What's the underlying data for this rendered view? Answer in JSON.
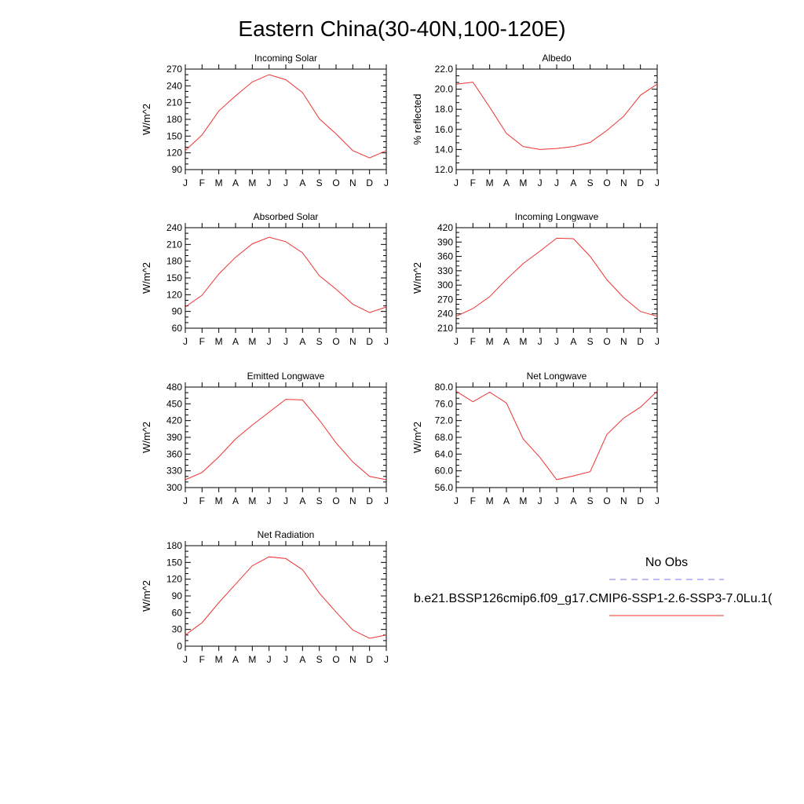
{
  "title": "Eastern China(30-40N,100-120E)",
  "months": [
    "J",
    "F",
    "M",
    "A",
    "M",
    "J",
    "J",
    "A",
    "S",
    "O",
    "N",
    "D",
    "J"
  ],
  "legend": {
    "obs_label": "No Obs",
    "model_label": "b.e21.BSSP126cmip6.f09_g17.CMIP6-SSP1-2.6-SSP3-7.0Lu.1(",
    "obs_color": "#7777ee",
    "model_color": "#ee3333"
  },
  "chart_data": [
    {
      "type": "line",
      "title": "Incoming Solar",
      "ylabel": "W/m^2",
      "ylim": [
        90,
        270
      ],
      "yticks": [
        "90",
        "120",
        "150",
        "180",
        "210",
        "240",
        "270"
      ],
      "series": [
        {
          "values": [
            124,
            152,
            195,
            222,
            247,
            260,
            251,
            228,
            181,
            154,
            124,
            111,
            124
          ]
        }
      ]
    },
    {
      "type": "line",
      "title": "Albedo",
      "ylabel": "% reflected",
      "ylim": [
        12,
        22
      ],
      "yticks": [
        "12.0",
        "14.0",
        "16.0",
        "18.0",
        "20.0",
        "22.0"
      ],
      "series": [
        {
          "values": [
            20.5,
            20.7,
            18.2,
            15.6,
            14.3,
            14.0,
            14.1,
            14.3,
            14.7,
            15.9,
            17.3,
            19.4,
            20.5
          ]
        }
      ]
    },
    {
      "type": "line",
      "title": "Absorbed Solar",
      "ylabel": "W/m^2",
      "ylim": [
        60,
        240
      ],
      "yticks": [
        "60",
        "90",
        "120",
        "150",
        "180",
        "210",
        "240"
      ],
      "series": [
        {
          "values": [
            98,
            119,
            157,
            187,
            211,
            223,
            215,
            195,
            154,
            130,
            103,
            88,
            98
          ]
        }
      ]
    },
    {
      "type": "line",
      "title": "Incoming Longwave",
      "ylabel": "W/m^2",
      "ylim": [
        210,
        420
      ],
      "yticks": [
        "210",
        "240",
        "270",
        "300",
        "330",
        "360",
        "390",
        "420"
      ],
      "series": [
        {
          "values": [
            235,
            251,
            276,
            312,
            345,
            371,
            398,
            397,
            360,
            311,
            274,
            245,
            235
          ]
        }
      ]
    },
    {
      "type": "line",
      "title": "Emitted Longwave",
      "ylabel": "W/m^2",
      "ylim": [
        300,
        480
      ],
      "yticks": [
        "300",
        "330",
        "360",
        "390",
        "420",
        "450",
        "480"
      ],
      "series": [
        {
          "values": [
            314,
            327,
            355,
            387,
            412,
            435,
            458,
            457,
            421,
            380,
            346,
            320,
            314
          ]
        }
      ]
    },
    {
      "type": "line",
      "title": "Net Longwave",
      "ylabel": "W/m^2",
      "ylim": [
        56,
        80
      ],
      "yticks": [
        "56.0",
        "60.0",
        "64.0",
        "68.0",
        "72.0",
        "76.0",
        "80.0"
      ],
      "series": [
        {
          "values": [
            79.0,
            76.5,
            78.8,
            76.2,
            67.6,
            63.2,
            57.9,
            58.8,
            59.8,
            68.7,
            72.6,
            75.2,
            79.0
          ]
        }
      ]
    },
    {
      "type": "line",
      "title": "Net Radiation",
      "ylabel": "W/m^2",
      "ylim": [
        0,
        180
      ],
      "yticks": [
        "0",
        "30",
        "60",
        "90",
        "120",
        "150",
        "180"
      ],
      "series": [
        {
          "values": [
            20,
            42,
            78,
            111,
            144,
            160,
            157,
            137,
            95,
            61,
            29,
            14,
            20
          ]
        }
      ]
    }
  ]
}
